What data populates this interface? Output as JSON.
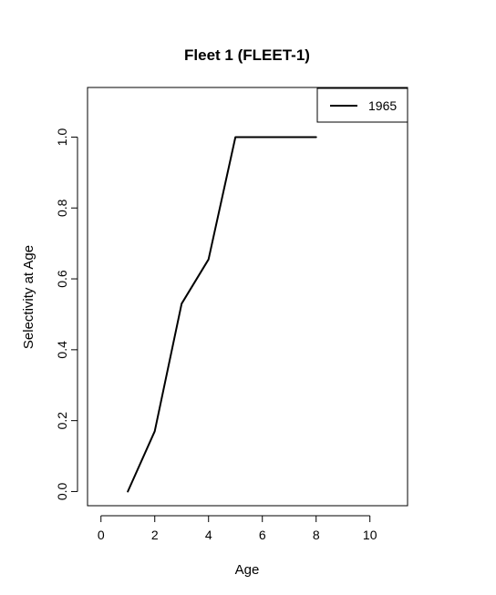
{
  "chart_data": {
    "type": "line",
    "title": "Fleet 1 (FLEET-1)",
    "xlabel": "Age",
    "ylabel": "Selectivity at Age",
    "xlim": [
      -0.5,
      11.4
    ],
    "ylim": [
      -0.04,
      1.14
    ],
    "xticks": [
      0,
      2,
      4,
      6,
      8,
      10
    ],
    "yticks": [
      0.0,
      0.2,
      0.4,
      0.6,
      0.8,
      1.0
    ],
    "xtick_labels": [
      "0",
      "2",
      "4",
      "6",
      "8",
      "10"
    ],
    "ytick_labels": [
      "0.0",
      "0.2",
      "0.4",
      "0.6",
      "0.8",
      "1.0"
    ],
    "legend_position": "top-right",
    "grid": false,
    "series": [
      {
        "name": "1965",
        "color": "#000000",
        "x": [
          1,
          2,
          3,
          4,
          5,
          6,
          7,
          8
        ],
        "y": [
          0.0,
          0.17,
          0.53,
          0.655,
          1.0,
          1.0,
          1.0,
          1.0
        ]
      }
    ]
  }
}
